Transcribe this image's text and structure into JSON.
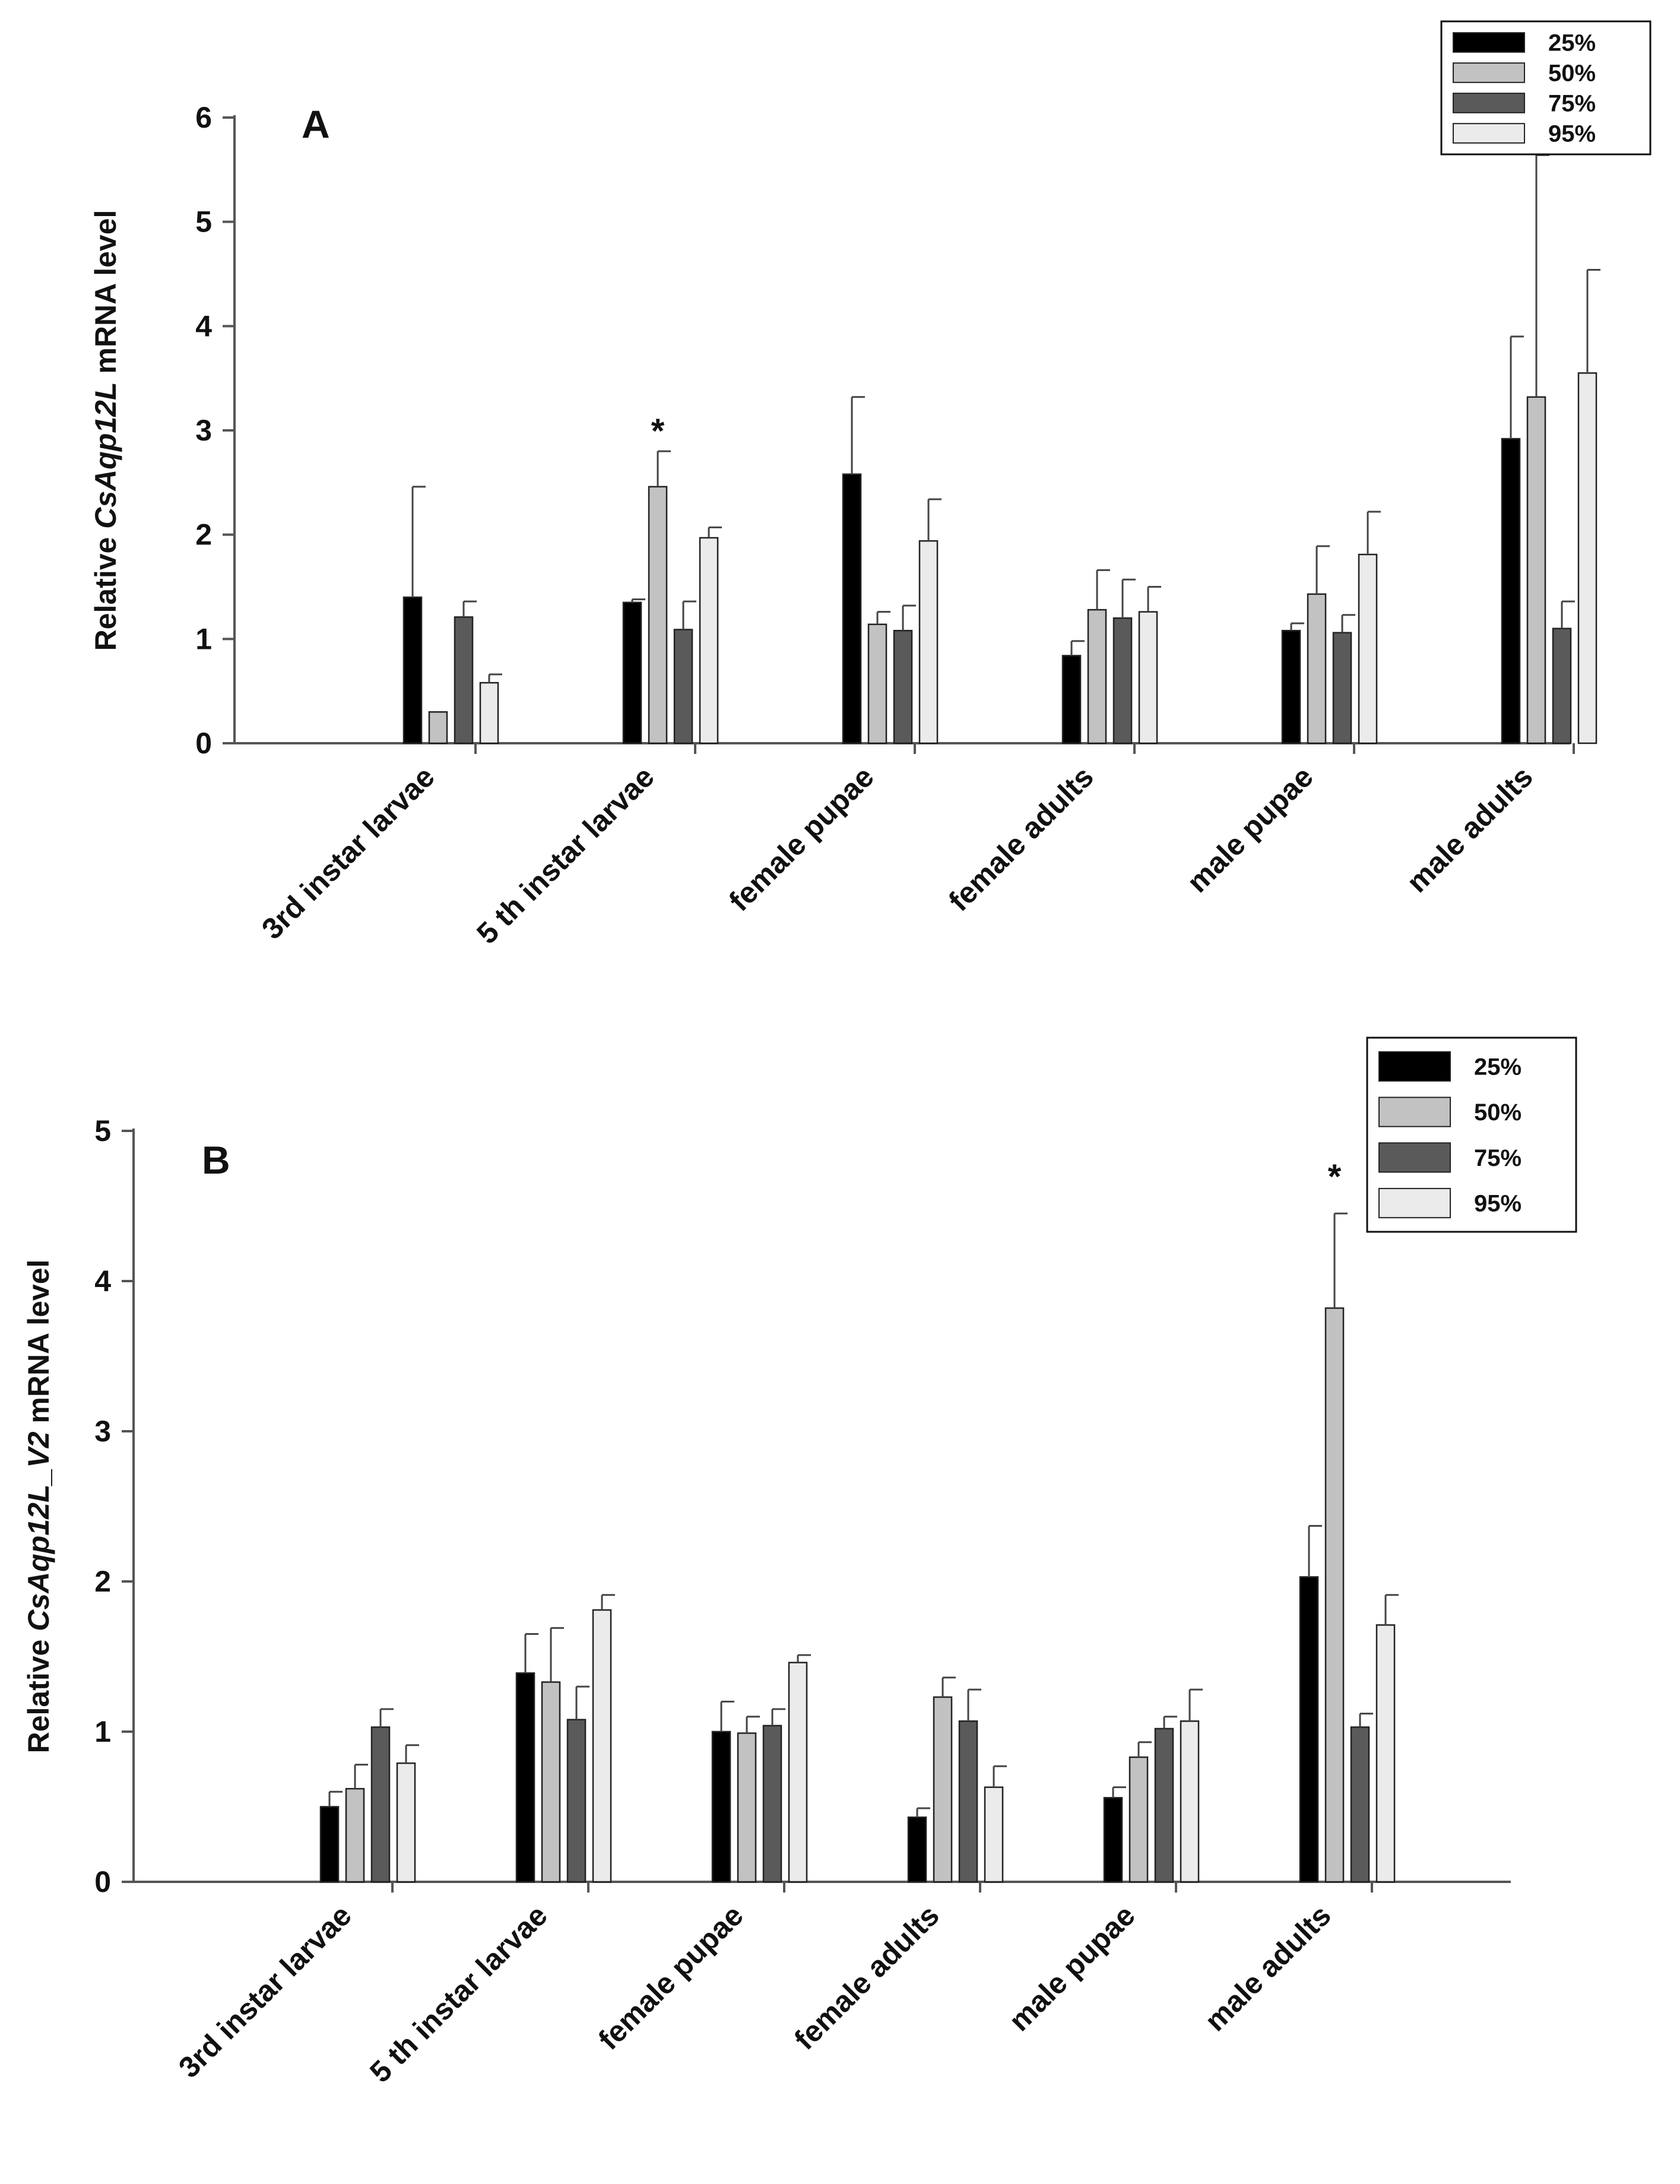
{
  "legend": {
    "entries": [
      {
        "label": "25%",
        "color": "#000000"
      },
      {
        "label": "50%",
        "color": "#c2c2c2"
      },
      {
        "label": "75%",
        "color": "#5a5a5a"
      },
      {
        "label": "95%",
        "color": "#ebebeb"
      }
    ]
  },
  "chart_data": [
    {
      "type": "bar",
      "panel": "A",
      "ylabel_prefix": "Relative ",
      "ylabel_gene": "CsAqp12L",
      "ylabel_suffix": " mRNA level",
      "xlabel": "",
      "ylim": [
        0,
        6
      ],
      "yticks": [
        "0",
        "1",
        "2",
        "3",
        "4",
        "5",
        "6"
      ],
      "categories": [
        "3rd instar larvae",
        "5 th instar larvae",
        "female pupae",
        "female adults",
        "male pupae",
        "male adults"
      ],
      "series": [
        {
          "name": "25%",
          "values": [
            1.4,
            1.35,
            2.58,
            0.84,
            1.08,
            2.92
          ],
          "errors": [
            1.06,
            0.03,
            0.74,
            0.14,
            0.07,
            0.98
          ]
        },
        {
          "name": "50%",
          "values": [
            0.3,
            2.46,
            1.14,
            1.28,
            1.43,
            3.32
          ],
          "errors": [
            0.0,
            0.34,
            0.12,
            0.38,
            0.46,
            2.32
          ]
        },
        {
          "name": "75%",
          "values": [
            1.21,
            1.09,
            1.08,
            1.2,
            1.06,
            1.1
          ],
          "errors": [
            0.15,
            0.27,
            0.24,
            0.37,
            0.17,
            0.26
          ]
        },
        {
          "name": "95%",
          "values": [
            0.58,
            1.97,
            1.94,
            1.26,
            1.81,
            3.55
          ],
          "errors": [
            0.08,
            0.1,
            0.4,
            0.24,
            0.41,
            0.99
          ]
        }
      ],
      "annotations": [
        {
          "text": "*",
          "category": "5 th instar larvae",
          "series": "50%"
        }
      ]
    },
    {
      "type": "bar",
      "panel": "B",
      "ylabel_prefix": "Relative ",
      "ylabel_gene": "CsAqp12L_V2",
      "ylabel_suffix": " mRNA level",
      "xlabel": "",
      "ylim": [
        0,
        5
      ],
      "yticks": [
        "0",
        "1",
        "2",
        "3",
        "4",
        "5"
      ],
      "categories": [
        "3rd instar larvae",
        "5 th instar larvae",
        "female pupae",
        "female adults",
        "male pupae",
        "male adults"
      ],
      "series": [
        {
          "name": "25%",
          "values": [
            0.5,
            1.39,
            1.0,
            0.43,
            0.56,
            2.03
          ],
          "errors": [
            0.1,
            0.26,
            0.2,
            0.06,
            0.07,
            0.34
          ]
        },
        {
          "name": "50%",
          "values": [
            0.62,
            1.33,
            0.99,
            1.23,
            0.83,
            3.82
          ],
          "errors": [
            0.16,
            0.36,
            0.11,
            0.13,
            0.1,
            0.63
          ]
        },
        {
          "name": "75%",
          "values": [
            1.03,
            1.08,
            1.04,
            1.07,
            1.02,
            1.03
          ],
          "errors": [
            0.12,
            0.22,
            0.11,
            0.21,
            0.08,
            0.09
          ]
        },
        {
          "name": "95%",
          "values": [
            0.79,
            1.81,
            1.46,
            0.63,
            1.07,
            1.71
          ],
          "errors": [
            0.12,
            0.1,
            0.05,
            0.14,
            0.21,
            0.2
          ]
        }
      ],
      "annotations": [
        {
          "text": "*",
          "category": "male adults",
          "series": "50%"
        }
      ]
    }
  ]
}
